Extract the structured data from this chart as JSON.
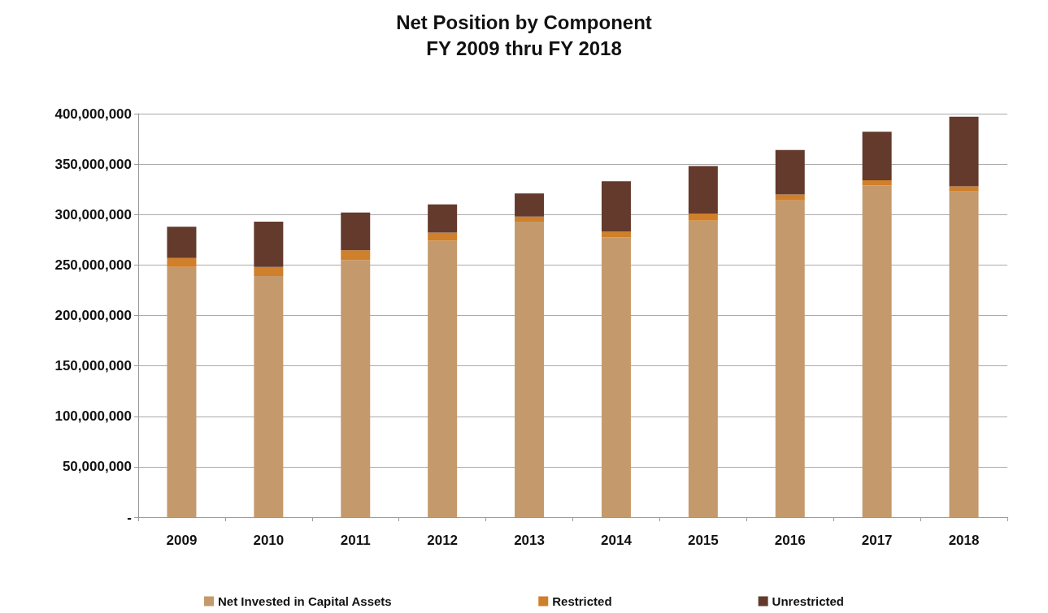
{
  "chart_data": {
    "type": "bar",
    "title": "Net Position by Component",
    "subtitle": "FY 2009 thru FY 2018",
    "categories": [
      "2009",
      "2010",
      "2011",
      "2012",
      "2013",
      "2014",
      "2015",
      "2016",
      "2017",
      "2018"
    ],
    "stacked": true,
    "series": [
      {
        "name": "Net Invested in Capital Assets",
        "color": "#c49a6c",
        "values": [
          248000000,
          239000000,
          255000000,
          274000000,
          293000000,
          277500000,
          294000000,
          314000000,
          329000000,
          323000000
        ]
      },
      {
        "name": "Restricted",
        "color": "#d07f2a",
        "values": [
          9000000,
          9000000,
          9500000,
          8000000,
          5000000,
          5500000,
          7000000,
          6000000,
          5000000,
          5000000
        ]
      },
      {
        "name": "Unrestricted",
        "color": "#633a2c",
        "values": [
          31000000,
          45000000,
          37500000,
          28000000,
          23000000,
          50000000,
          47000000,
          44000000,
          48000000,
          69000000
        ]
      }
    ],
    "ylim": [
      0,
      400000000
    ],
    "yticks": [
      {
        "value": 0,
        "label": "-"
      },
      {
        "value": 50000000,
        "label": "50,000,000"
      },
      {
        "value": 100000000,
        "label": "100,000,000"
      },
      {
        "value": 150000000,
        "label": "150,000,000"
      },
      {
        "value": 200000000,
        "label": "200,000,000"
      },
      {
        "value": 250000000,
        "label": "250,000,000"
      },
      {
        "value": 300000000,
        "label": "300,000,000"
      },
      {
        "value": 350000000,
        "label": "350,000,000"
      },
      {
        "value": 400000000,
        "label": "400,000,000"
      }
    ],
    "grid": "y",
    "legend": "bottom"
  }
}
